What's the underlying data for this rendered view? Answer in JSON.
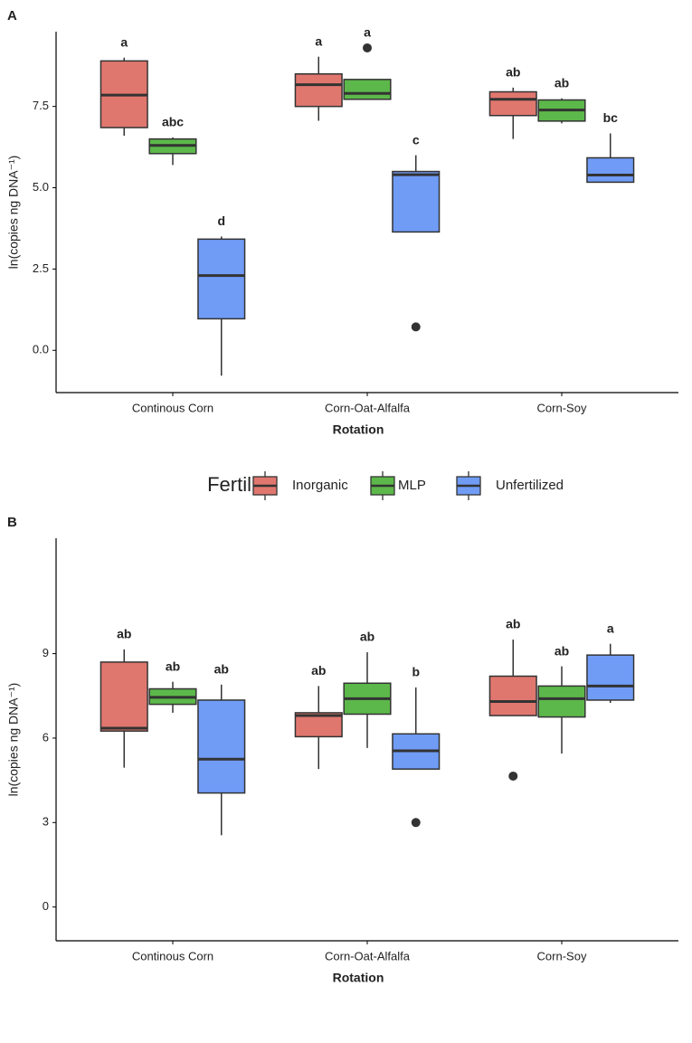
{
  "legend": {
    "title": "Fertility",
    "entries": [
      {
        "name": "Inorganic",
        "color": "#e0776e"
      },
      {
        "name": "MLP",
        "color": "#5cb84a"
      },
      {
        "name": "Unfertilized",
        "color": "#709cf6"
      }
    ]
  },
  "chart_data": [
    {
      "type": "box",
      "panel": "A",
      "x_label": "Rotation",
      "y_label": "ln(copies ng DNA⁻¹)",
      "categories": [
        "Continous Corn",
        "Corn-Oat-Alfalfa",
        "Corn-Soy"
      ],
      "ylim": [
        -1.3,
        9.8
      ],
      "yticks": [
        {
          "value": 0,
          "label": "0.0"
        },
        2.5,
        {
          "value": 5,
          "label": "5.0"
        },
        7.5
      ],
      "series": [
        {
          "values": [
            {
              "low": 6.6,
              "q1": 6.85,
              "median": 7.85,
              "q3": 8.9,
              "high": 9.0,
              "outliers": []
            },
            {
              "low": 7.06,
              "q1": 7.5,
              "median": 8.17,
              "q3": 8.5,
              "high": 9.03,
              "outliers": []
            },
            {
              "low": 6.5,
              "q1": 7.22,
              "median": 7.72,
              "q3": 7.95,
              "high": 8.08,
              "outliers": []
            }
          ],
          "letters": [
            "a",
            "a",
            "ab"
          ]
        },
        {
          "values": [
            {
              "low": 5.7,
              "q1": 6.05,
              "median": 6.3,
              "q3": 6.5,
              "high": 6.55,
              "outliers": []
            },
            {
              "low": 7.72,
              "q1": 7.72,
              "median": 7.9,
              "q3": 8.33,
              "high": 8.33,
              "outliers": [
                9.3
              ]
            },
            {
              "low": 6.98,
              "q1": 7.05,
              "median": 7.39,
              "q3": 7.7,
              "high": 7.75,
              "outliers": []
            }
          ],
          "letters": [
            "abc",
            "a",
            "ab"
          ]
        },
        {
          "values": [
            {
              "low": -0.78,
              "q1": 0.97,
              "median": 2.3,
              "q3": 3.42,
              "high": 3.5,
              "outliers": []
            },
            {
              "low": 3.64,
              "q1": 3.64,
              "median": 5.4,
              "q3": 5.5,
              "high": 6.0,
              "outliers": [
                0.72
              ]
            },
            {
              "low": 5.17,
              "q1": 5.17,
              "median": 5.39,
              "q3": 5.92,
              "high": 6.67,
              "outliers": []
            }
          ],
          "letters": [
            "d",
            "c",
            "bc"
          ]
        }
      ]
    },
    {
      "type": "box",
      "panel": "B",
      "x_label": "Rotation",
      "y_label": "ln(copies ng DNA⁻¹)",
      "categories": [
        "Continous Corn",
        "Corn-Oat-Alfalfa",
        "Corn-Soy"
      ],
      "ylim": [
        -1.2,
        13.1
      ],
      "yticks": [
        0,
        3,
        6,
        9
      ],
      "series": [
        {
          "values": [
            {
              "low": 4.95,
              "q1": 6.25,
              "median": 6.35,
              "q3": 8.7,
              "high": 9.15,
              "outliers": []
            },
            {
              "low": 4.9,
              "q1": 6.05,
              "median": 6.8,
              "q3": 6.9,
              "high": 7.85,
              "outliers": []
            },
            {
              "low": 6.8,
              "q1": 6.8,
              "median": 7.3,
              "q3": 8.2,
              "high": 9.5,
              "outliers": [
                4.65
              ]
            }
          ],
          "letters": [
            "ab",
            "ab",
            "ab"
          ]
        },
        {
          "values": [
            {
              "low": 6.9,
              "q1": 7.2,
              "median": 7.45,
              "q3": 7.75,
              "high": 8.0,
              "outliers": []
            },
            {
              "low": 5.65,
              "q1": 6.85,
              "median": 7.4,
              "q3": 7.95,
              "high": 9.05,
              "outliers": []
            },
            {
              "low": 5.45,
              "q1": 6.75,
              "median": 7.4,
              "q3": 7.85,
              "high": 8.55,
              "outliers": []
            }
          ],
          "letters": [
            "ab",
            "ab",
            "ab"
          ]
        },
        {
          "values": [
            {
              "low": 2.55,
              "q1": 4.05,
              "median": 5.25,
              "q3": 7.35,
              "high": 7.9,
              "outliers": []
            },
            {
              "low": 4.9,
              "q1": 4.9,
              "median": 5.55,
              "q3": 6.15,
              "high": 7.8,
              "outliers": [
                3.0
              ]
            },
            {
              "low": 7.25,
              "q1": 7.35,
              "median": 7.85,
              "q3": 8.95,
              "high": 9.35,
              "outliers": []
            }
          ],
          "letters": [
            "ab",
            "b",
            "a"
          ]
        }
      ]
    }
  ]
}
